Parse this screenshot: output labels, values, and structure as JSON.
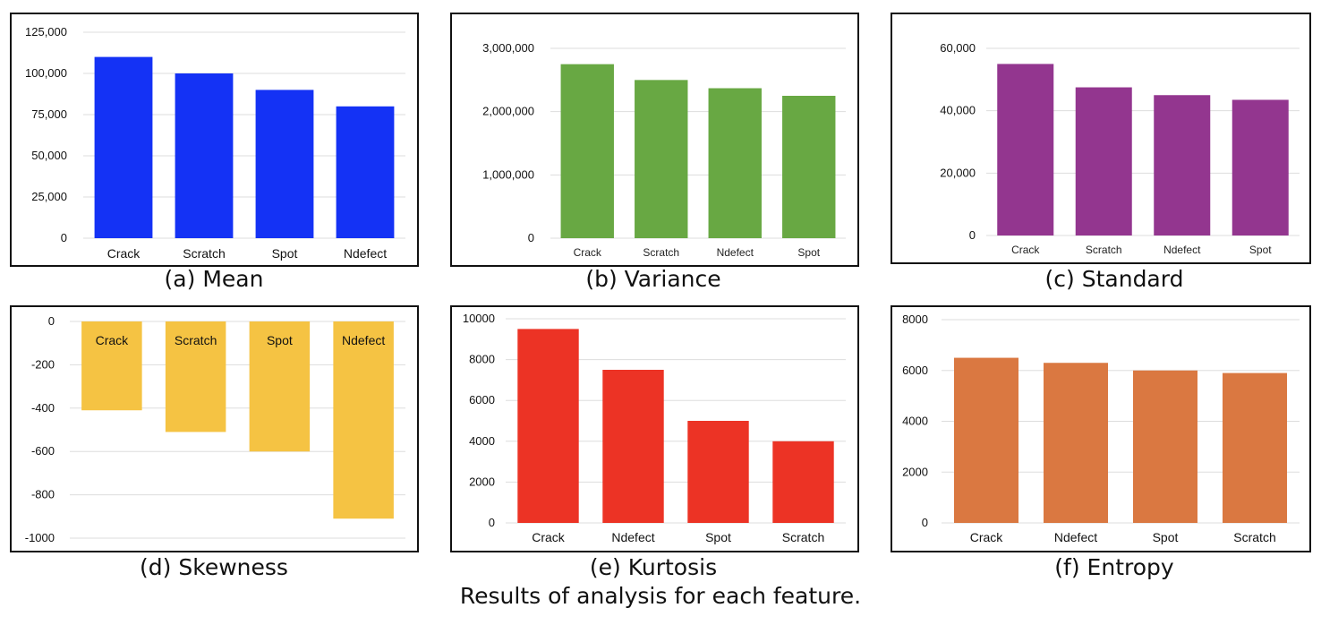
{
  "figure_caption": "Results of analysis for each feature.",
  "chart_data": [
    {
      "type": "bar",
      "caption": "(a) Mean",
      "color": "#1432f5",
      "categories": [
        "Crack",
        "Scratch",
        "Spot",
        "Ndefect"
      ],
      "values": [
        110000,
        100000,
        90000,
        80000
      ],
      "yticks": [
        0,
        25000,
        50000,
        75000,
        100000,
        125000
      ],
      "ytick_labels": [
        "0",
        "25,000",
        "50,000",
        "75,000",
        "100,000",
        "125,000"
      ],
      "ylim": [
        0,
        125000
      ],
      "grid": true
    },
    {
      "type": "bar",
      "caption": "(b) Variance",
      "color": "#68a843",
      "categories": [
        "Crack",
        "Scratch",
        "Ndefect",
        "Spot"
      ],
      "values": [
        2750000,
        2500000,
        2370000,
        2250000
      ],
      "yticks": [
        0,
        1000000,
        2000000,
        3000000
      ],
      "ytick_labels": [
        "0",
        "1,000,000",
        "2,000,000",
        "3,000,000"
      ],
      "ylim": [
        0,
        3000000
      ],
      "grid": true
    },
    {
      "type": "bar",
      "caption": "(c) Standard",
      "color": "#93368f",
      "categories": [
        "Crack",
        "Scratch",
        "Ndefect",
        "Spot"
      ],
      "values": [
        55000,
        47500,
        45000,
        43500
      ],
      "yticks": [
        0,
        20000,
        40000,
        60000
      ],
      "ytick_labels": [
        "0",
        "20,000",
        "40,000",
        "60,000"
      ],
      "ylim": [
        0,
        60000
      ],
      "grid": true
    },
    {
      "type": "bar",
      "caption": "(d) Skewness",
      "color": "#f5c343",
      "categories": [
        "Crack",
        "Scratch",
        "Spot",
        "Ndefect"
      ],
      "values": [
        -410,
        -510,
        -600,
        -910
      ],
      "yticks": [
        0,
        -200,
        -400,
        -600,
        -800,
        -1000
      ],
      "ytick_labels": [
        "0",
        "-200",
        "-400",
        "-600",
        "-800",
        "-1000"
      ],
      "ylim": [
        -1000,
        0
      ],
      "grid": true,
      "labels_at_top": true
    },
    {
      "type": "bar",
      "caption": "(e) Kurtosis",
      "color": "#ec3325",
      "categories": [
        "Crack",
        "Ndefect",
        "Spot",
        "Scratch"
      ],
      "values": [
        9500,
        7500,
        5000,
        4000
      ],
      "yticks": [
        0,
        2000,
        4000,
        6000,
        8000,
        10000
      ],
      "ytick_labels": [
        "0",
        "2000",
        "4000",
        "6000",
        "8000",
        "10000"
      ],
      "ylim": [
        0,
        10000
      ],
      "grid": true
    },
    {
      "type": "bar",
      "caption": "(f) Entropy",
      "color": "#da7841",
      "categories": [
        "Crack",
        "Ndefect",
        "Spot",
        "Scratch"
      ],
      "values": [
        6500,
        6300,
        6000,
        5900
      ],
      "yticks": [
        0,
        2000,
        4000,
        6000,
        8000
      ],
      "ytick_labels": [
        "0",
        "2000",
        "4000",
        "6000",
        "8000"
      ],
      "ylim": [
        0,
        8000
      ],
      "grid": true
    }
  ]
}
